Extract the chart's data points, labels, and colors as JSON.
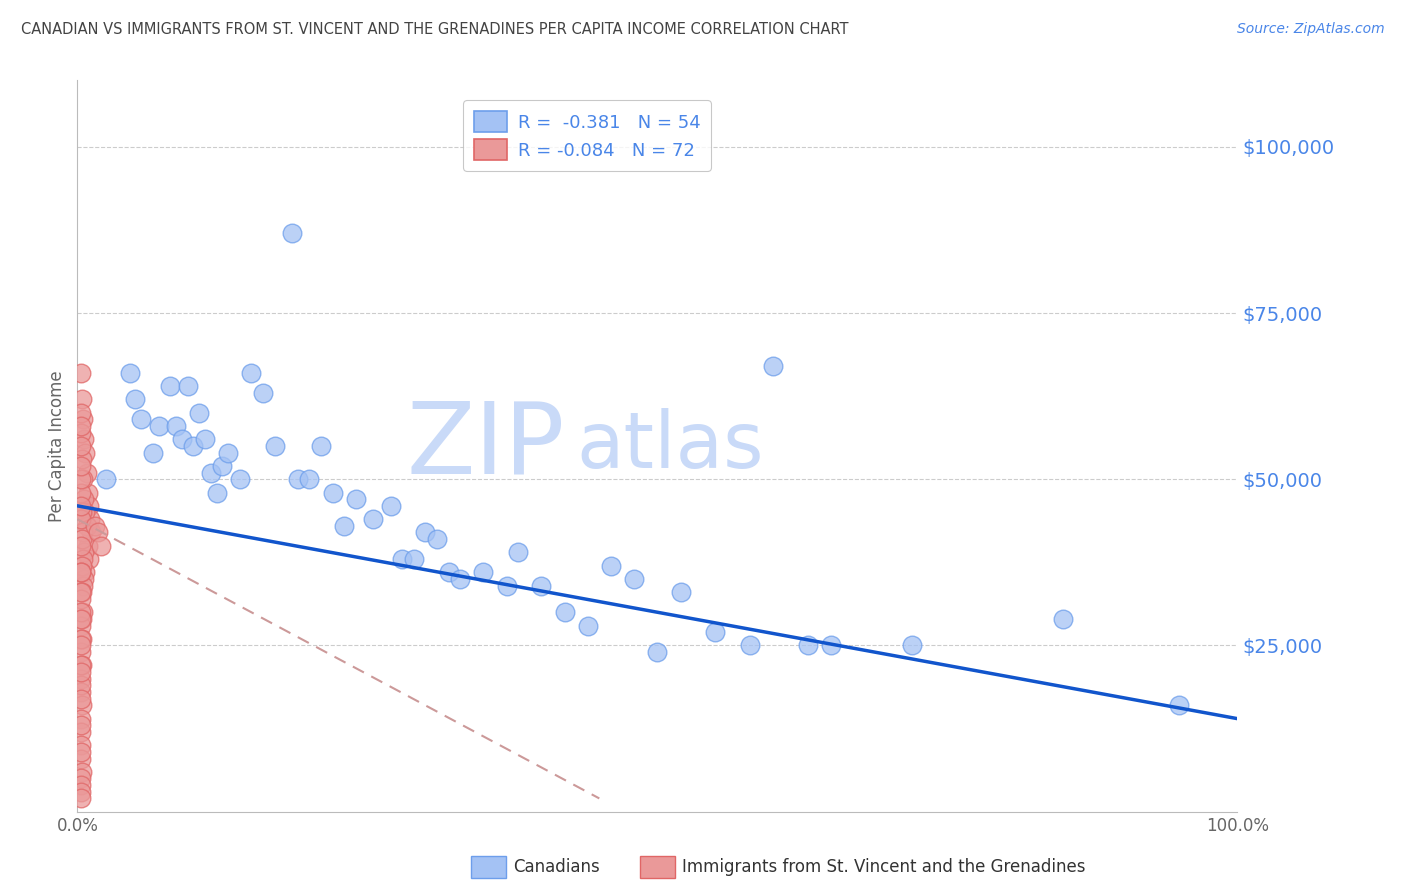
{
  "title": "CANADIAN VS IMMIGRANTS FROM ST. VINCENT AND THE GRENADINES PER CAPITA INCOME CORRELATION CHART",
  "source": "Source: ZipAtlas.com",
  "ylabel": "Per Capita Income",
  "xlim": [
    0,
    1.0
  ],
  "ylim": [
    0,
    110000
  ],
  "yticks": [
    25000,
    50000,
    75000,
    100000
  ],
  "ytick_labels": [
    "$25,000",
    "$50,000",
    "$75,000",
    "$100,000"
  ],
  "background_color": "#ffffff",
  "blue_dot_facecolor": "#a4c2f4",
  "blue_dot_edgecolor": "#6d9eeb",
  "pink_dot_facecolor": "#ea9999",
  "pink_dot_edgecolor": "#e06666",
  "line_blue_color": "#1155cc",
  "line_pink_color": "#cc9999",
  "right_label_color": "#4a86e8",
  "watermark_zip_color": "#c9daf8",
  "watermark_atlas_color": "#c9daf8",
  "grid_color": "#cccccc",
  "title_color": "#434343",
  "source_color": "#4a86e8",
  "legend_text_color": "#4a86e8",
  "axis_text_color": "#666666",
  "can_line_x0": 0.0,
  "can_line_x1": 1.0,
  "can_line_y0": 46000,
  "can_line_y1": 14000,
  "imm_line_x0": 0.0,
  "imm_line_x1": 0.45,
  "imm_line_y0": 44000,
  "imm_line_y1": 2000,
  "canadians_x": [
    0.025,
    0.045,
    0.05,
    0.055,
    0.065,
    0.07,
    0.08,
    0.085,
    0.09,
    0.095,
    0.1,
    0.105,
    0.11,
    0.115,
    0.12,
    0.125,
    0.13,
    0.14,
    0.15,
    0.16,
    0.17,
    0.185,
    0.19,
    0.2,
    0.21,
    0.22,
    0.23,
    0.24,
    0.255,
    0.27,
    0.28,
    0.29,
    0.3,
    0.31,
    0.32,
    0.33,
    0.35,
    0.37,
    0.38,
    0.4,
    0.42,
    0.44,
    0.46,
    0.48,
    0.5,
    0.52,
    0.55,
    0.58,
    0.6,
    0.63,
    0.65,
    0.72,
    0.85,
    0.95
  ],
  "canadians_y": [
    50000,
    66000,
    62000,
    59000,
    54000,
    58000,
    64000,
    58000,
    56000,
    64000,
    55000,
    60000,
    56000,
    51000,
    48000,
    52000,
    54000,
    50000,
    66000,
    63000,
    55000,
    87000,
    50000,
    50000,
    55000,
    48000,
    43000,
    47000,
    44000,
    46000,
    38000,
    38000,
    42000,
    41000,
    36000,
    35000,
    36000,
    34000,
    39000,
    34000,
    30000,
    28000,
    37000,
    35000,
    24000,
    33000,
    27000,
    25000,
    67000,
    25000,
    25000,
    25000,
    29000,
    16000
  ],
  "immigrants_x": [
    0.003,
    0.004,
    0.005,
    0.006,
    0.007,
    0.008,
    0.009,
    0.01,
    0.011,
    0.012,
    0.003,
    0.004,
    0.005,
    0.006,
    0.007,
    0.008,
    0.009,
    0.01,
    0.003,
    0.004,
    0.005,
    0.006,
    0.007,
    0.003,
    0.004,
    0.005,
    0.006,
    0.003,
    0.004,
    0.005,
    0.003,
    0.004,
    0.005,
    0.003,
    0.004,
    0.003,
    0.004,
    0.003,
    0.004,
    0.003,
    0.003,
    0.004,
    0.003,
    0.003,
    0.003,
    0.003,
    0.004,
    0.003,
    0.003,
    0.003,
    0.015,
    0.018,
    0.02,
    0.003,
    0.003,
    0.003,
    0.003,
    0.003,
    0.003,
    0.003,
    0.003,
    0.003,
    0.003,
    0.003,
    0.003,
    0.003,
    0.003,
    0.003,
    0.003,
    0.003,
    0.003,
    0.003
  ],
  "immigrants_y": [
    66000,
    62000,
    59000,
    56000,
    54000,
    51000,
    48000,
    46000,
    44000,
    42000,
    57000,
    53000,
    50000,
    47000,
    45000,
    43000,
    40000,
    38000,
    48000,
    45000,
    42000,
    39000,
    36000,
    44000,
    41000,
    38000,
    35000,
    40000,
    37000,
    34000,
    36000,
    33000,
    30000,
    32000,
    29000,
    28000,
    26000,
    24000,
    22000,
    20000,
    18000,
    16000,
    14000,
    12000,
    10000,
    8000,
    6000,
    60000,
    58000,
    50000,
    43000,
    42000,
    40000,
    55000,
    52000,
    46000,
    30000,
    26000,
    22000,
    19000,
    36000,
    33000,
    29000,
    25000,
    21000,
    17000,
    13000,
    9000,
    5000,
    4000,
    3000,
    2000
  ]
}
